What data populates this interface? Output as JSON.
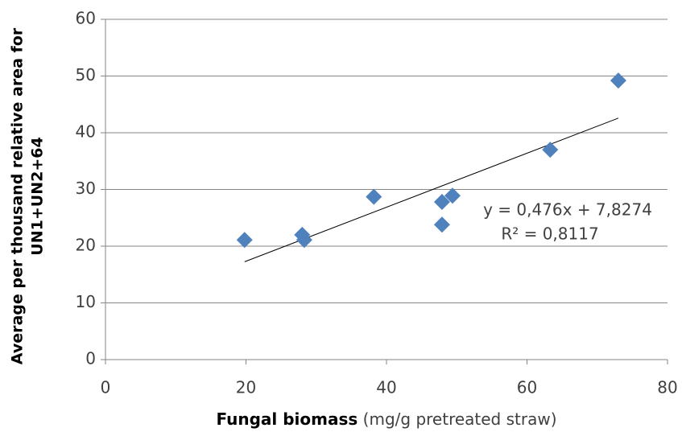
{
  "chart_data": {
    "type": "scatter",
    "x_label": "Fungal biomass",
    "x_label_unit": "(mg/g pretreated straw)",
    "y_label": [
      "Average per thousand relative area for",
      "UN1+UN2+64"
    ],
    "x": [
      19.8,
      28.0,
      28.3,
      38.2,
      47.9,
      49.4,
      47.9,
      63.3,
      73.0
    ],
    "values": [
      21.1,
      22.0,
      21.1,
      28.7,
      27.8,
      28.9,
      23.8,
      37.0,
      49.2
    ],
    "color": "#4f81bd",
    "xlim": [
      0,
      80
    ],
    "xticks": [
      0,
      20,
      40,
      60,
      80
    ],
    "ylim": [
      0,
      60
    ],
    "yticks": [
      0,
      10,
      20,
      30,
      40,
      50,
      60
    ],
    "grid": true,
    "trendline": {
      "slope": 0.476,
      "intercept": 7.8274,
      "label": "y = 0,476x + 7,8274",
      "r2_label": "R² = 0,8117"
    }
  }
}
